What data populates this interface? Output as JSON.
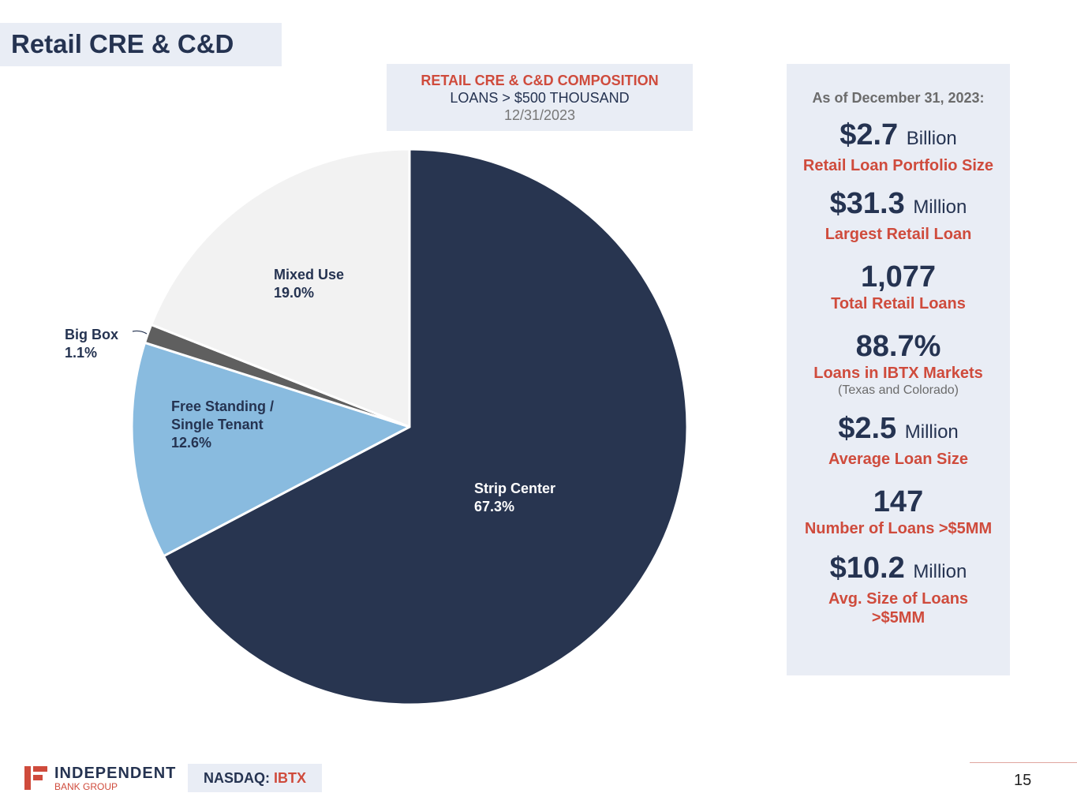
{
  "page": {
    "title": "Retail CRE & C&D",
    "page_number": "15"
  },
  "chart_header": {
    "line1": "RETAIL CRE & C&D COMPOSITION",
    "line2": "LOANS > $500 THOUSAND",
    "line3": "12/31/2023"
  },
  "chart_data": {
    "type": "pie",
    "title": "RETAIL CRE & C&D COMPOSITION",
    "subtitle": "LOANS > $500 THOUSAND — 12/31/2023",
    "start_angle": "12 o'clock, clockwise",
    "slices": [
      {
        "label": "Strip Center",
        "value": 67.3,
        "display": "67.3%",
        "color": "#283550"
      },
      {
        "label": "Free Standing / Single Tenant",
        "value": 12.6,
        "display": "12.6%",
        "color": "#89bbdf"
      },
      {
        "label": "Big Box",
        "value": 1.1,
        "display": "1.1%",
        "color": "#5f5f5f"
      },
      {
        "label": "Mixed Use",
        "value": 19.0,
        "display": "19.0%",
        "color": "#f2f2f2"
      }
    ]
  },
  "labels": {
    "strip": {
      "name": "Strip Center",
      "pct": "67.3%"
    },
    "free": {
      "name1": "Free Standing /",
      "name2": "Single Tenant",
      "pct": "12.6%"
    },
    "bigbox": {
      "name": "Big Box",
      "pct": "1.1%"
    },
    "mixed": {
      "name": "Mixed Use",
      "pct": "19.0%"
    }
  },
  "stats": {
    "as_of": "As of December 31, 2023:",
    "items": [
      {
        "value": "$2.7",
        "unit": "Billion",
        "label": "Retail Loan Portfolio Size"
      },
      {
        "value": "$31.3",
        "unit": "Million",
        "label": "Largest Retail Loan"
      },
      {
        "value": "1,077",
        "unit": "",
        "label": "Total Retail Loans"
      },
      {
        "value": "88.7%",
        "unit": "",
        "label": "Loans in IBTX Markets",
        "sub": "(Texas and Colorado)"
      },
      {
        "value": "$2.5",
        "unit": "Million",
        "label": "Average Loan Size"
      },
      {
        "value": "147",
        "unit": "",
        "label": "Number of Loans >$5MM"
      },
      {
        "value": "$10.2",
        "unit": "Million",
        "label1": "Avg. Size of Loans",
        "label2": ">$5MM"
      }
    ]
  },
  "footer": {
    "logo_line1": "INDEPENDENT",
    "logo_line2": "BANK GROUP",
    "nasdaq_label": "NASDAQ:",
    "ticker": "IBTX"
  },
  "colors": {
    "navy": "#253351",
    "accent_red": "#cf4b3c",
    "panel_bg": "#e9edf5"
  }
}
